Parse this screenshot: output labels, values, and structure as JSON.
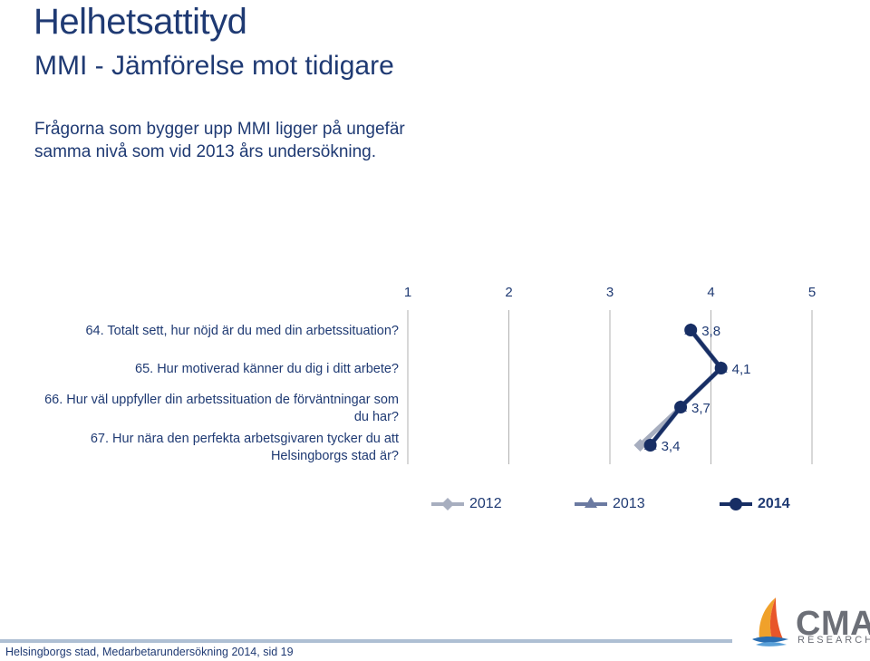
{
  "slide": {
    "title": "Helhetsattityd",
    "subtitle": "MMI - Jämförelse mot tidigare",
    "intro_line1": "Frågorna som bygger upp MMI ligger på ungefär",
    "intro_line2": "samma nivå som vid 2013 års undersökning."
  },
  "questions": {
    "q64": "64. Totalt sett, hur nöjd är du med din arbetssituation?",
    "q65": "65. Hur motiverad känner du dig i ditt arbete?",
    "q66_line1": "66. Hur väl uppfyller din arbetssituation de förväntningar som",
    "q66_line2": "du har?",
    "q67_line1": "67. Hur nära den perfekta arbetsgivaren tycker du att",
    "q67_line2": "Helsingborgs stad är?"
  },
  "chart_data": {
    "type": "line",
    "orientation": "horizontal-values",
    "x_ticks": [
      "1",
      "2",
      "3",
      "4",
      "5"
    ],
    "xlim": [
      1,
      5
    ],
    "categories": [
      "64",
      "65",
      "66",
      "67"
    ],
    "series": [
      {
        "name": "2012",
        "values": [
          3.8,
          4.1,
          3.7,
          3.3
        ],
        "color": "#a7aebf",
        "marker": "diamond"
      },
      {
        "name": "2013",
        "values": [
          3.8,
          4.1,
          3.7,
          3.4
        ],
        "color": "#6b7aa1",
        "marker": "triangle"
      },
      {
        "name": "2014",
        "values": [
          3.8,
          4.1,
          3.7,
          3.4
        ],
        "color": "#172e64",
        "marker": "circle"
      }
    ],
    "data_labels": [
      "3,8",
      "4,1",
      "3,7",
      "3,4"
    ],
    "legend_position": "bottom",
    "grid": "vertical"
  },
  "footer": {
    "text": "Helsingborgs stad, Medarbetarundersökning 2014, sid 19",
    "logo_text": "CMA",
    "logo_subtext": "RESEARCH"
  }
}
